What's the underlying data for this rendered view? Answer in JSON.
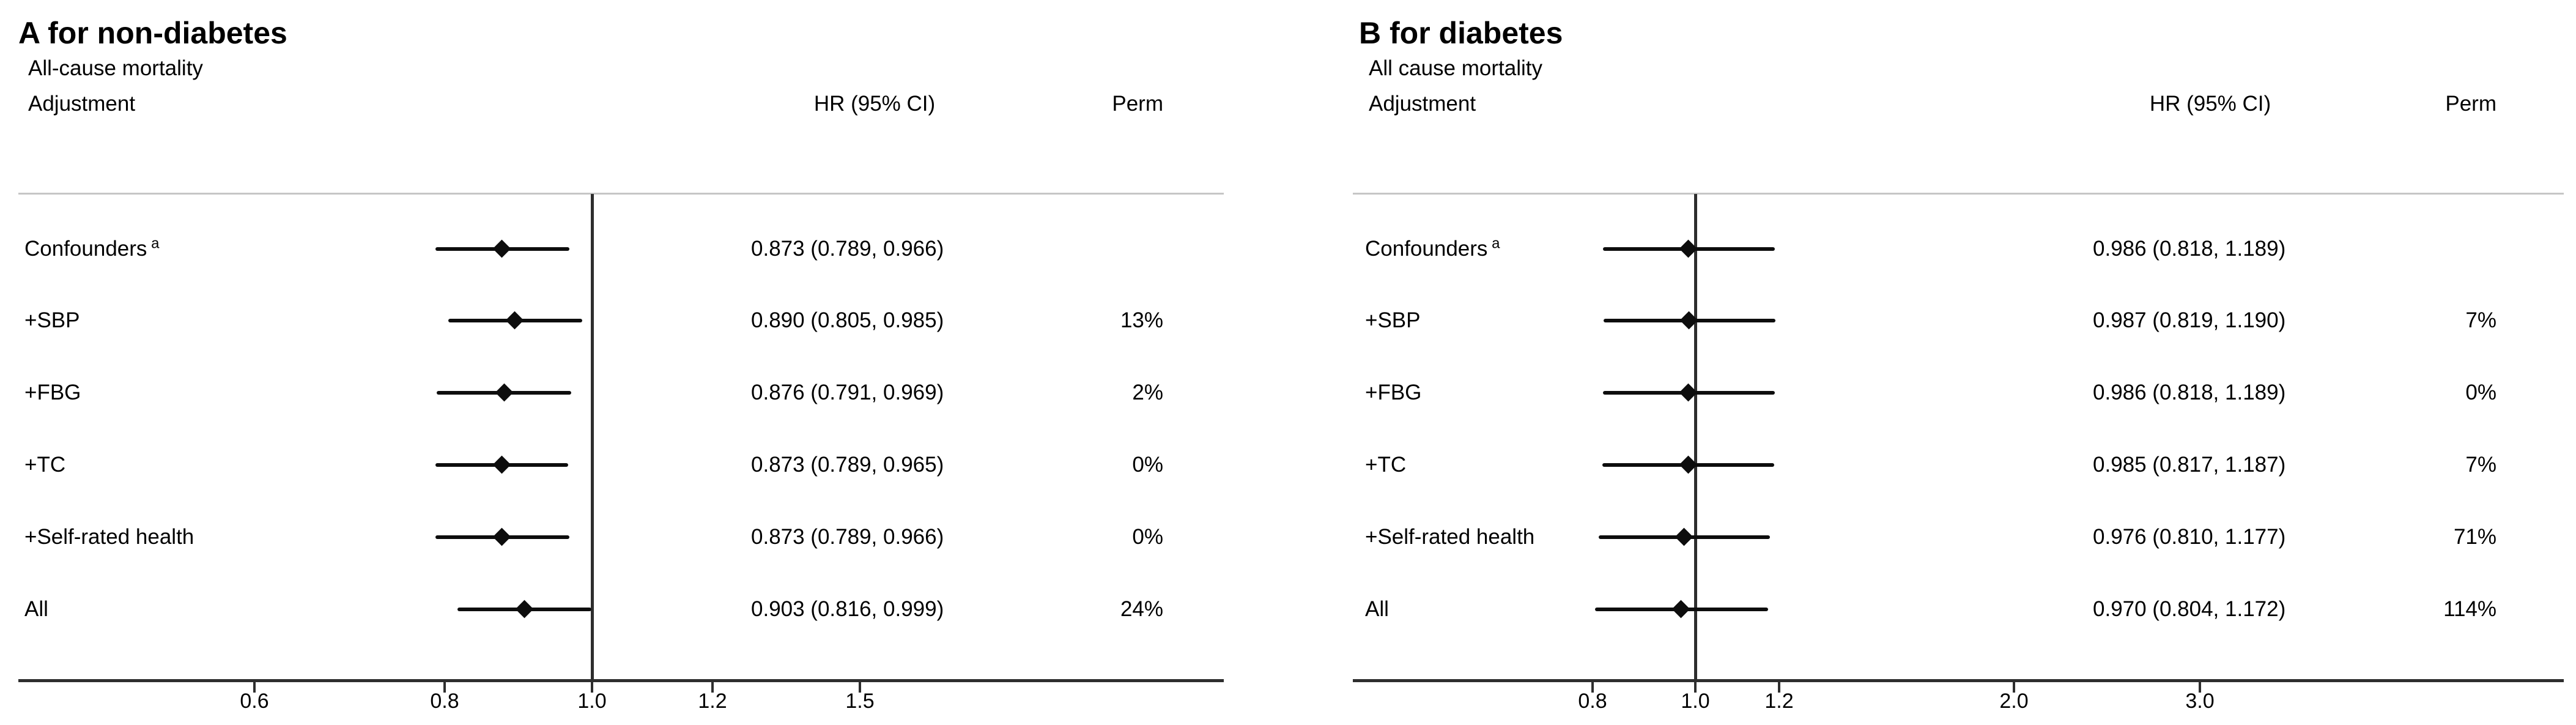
{
  "chart_data": [
    {
      "type": "forest",
      "panel_label": "A",
      "title": "A for non-diabetes",
      "subtitle": "All-cause mortality",
      "columns": {
        "adjustment": "Adjustment",
        "hr": "HR (95% CI)",
        "perm": "Perm"
      },
      "xscale": "log",
      "ref_line": 1.0,
      "axis": {
        "ticks": [
          0.6,
          0.8,
          1.0,
          1.2,
          1.5
        ],
        "tick_labels": [
          "0.6",
          "0.8",
          "1.0",
          "1.2",
          "1.5"
        ]
      },
      "rows": [
        {
          "label": "Confounders",
          "sup": "a",
          "hr": 0.873,
          "ci_low": 0.789,
          "ci_high": 0.966,
          "hr_text": "0.873 (0.789, 0.966)",
          "perm": ""
        },
        {
          "label": "+SBP",
          "sup": "",
          "hr": 0.89,
          "ci_low": 0.805,
          "ci_high": 0.985,
          "hr_text": "0.890 (0.805, 0.985)",
          "perm": "13%"
        },
        {
          "label": "+FBG",
          "sup": "",
          "hr": 0.876,
          "ci_low": 0.791,
          "ci_high": 0.969,
          "hr_text": "0.876 (0.791, 0.969)",
          "perm": "2%"
        },
        {
          "label": "+TC",
          "sup": "",
          "hr": 0.873,
          "ci_low": 0.789,
          "ci_high": 0.965,
          "hr_text": "0.873 (0.789, 0.965)",
          "perm": "0%"
        },
        {
          "label": "+Self-rated health",
          "sup": "",
          "hr": 0.873,
          "ci_low": 0.789,
          "ci_high": 0.966,
          "hr_text": "0.873 (0.789, 0.966)",
          "perm": "0%"
        },
        {
          "label": "All",
          "sup": "",
          "hr": 0.903,
          "ci_low": 0.816,
          "ci_high": 0.999,
          "hr_text": "0.903 (0.816, 0.999)",
          "perm": "24%"
        }
      ]
    },
    {
      "type": "forest",
      "panel_label": "B",
      "title": "B for diabetes",
      "subtitle": "All cause mortality",
      "columns": {
        "adjustment": "Adjustment",
        "hr": "HR (95% CI)",
        "perm": "Perm"
      },
      "xscale": "log",
      "ref_line": 1.0,
      "axis": {
        "ticks": [
          0.8,
          1.0,
          1.2,
          2.0,
          3.0
        ],
        "tick_labels": [
          "0.8",
          "1.0",
          "1.2",
          "2.0",
          "3.0"
        ]
      },
      "rows": [
        {
          "label": "Confounders",
          "sup": "a",
          "hr": 0.986,
          "ci_low": 0.818,
          "ci_high": 1.189,
          "hr_text": "0.986 (0.818, 1.189)",
          "perm": ""
        },
        {
          "label": "+SBP",
          "sup": "",
          "hr": 0.987,
          "ci_low": 0.819,
          "ci_high": 1.19,
          "hr_text": "0.987 (0.819, 1.190)",
          "perm": "7%"
        },
        {
          "label": "+FBG",
          "sup": "",
          "hr": 0.986,
          "ci_low": 0.818,
          "ci_high": 1.189,
          "hr_text": "0.986 (0.818, 1.189)",
          "perm": "0%"
        },
        {
          "label": "+TC",
          "sup": "",
          "hr": 0.985,
          "ci_low": 0.817,
          "ci_high": 1.187,
          "hr_text": "0.985 (0.817, 1.187)",
          "perm": "7%"
        },
        {
          "label": "+Self-rated health",
          "sup": "",
          "hr": 0.976,
          "ci_low": 0.81,
          "ci_high": 1.177,
          "hr_text": "0.976 (0.810, 1.177)",
          "perm": "71%"
        },
        {
          "label": "All",
          "sup": "",
          "hr": 0.97,
          "ci_low": 0.804,
          "ci_high": 1.172,
          "hr_text": "0.970 (0.804, 1.172)",
          "perm": "114%"
        }
      ]
    }
  ]
}
